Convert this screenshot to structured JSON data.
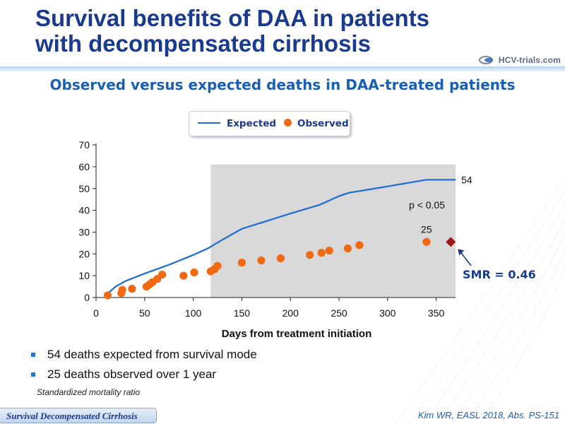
{
  "slide": {
    "title_line1": "Survival benefits of DAA in patients",
    "title_line2": "with decompensated cirrhosis",
    "subtitle": "Observed versus expected deaths in DAA-treated patients",
    "logo_text": "HCV-trials.com",
    "bullets": [
      "54 deaths expected from survival mode",
      "25 deaths observed over 1 year"
    ],
    "footnote": "Standardized mortality ratio",
    "section_tag": "Survival Decompensated Cirrhosis",
    "citation": "Kim WR, EASL 2018, Abs. PS-151",
    "colors": {
      "title": "#1a3a8c",
      "accent": "#1a5fb4",
      "expected_line": "#1f6fd6",
      "observed_dot": "#f06a14",
      "smr_marker": "#9b1616",
      "shaded": "#d9d9d9"
    }
  },
  "chart_data": {
    "type": "line",
    "xlabel": "Days from treatment initiation",
    "ylabel": "",
    "xlim": [
      0,
      370
    ],
    "ylim": [
      0,
      70
    ],
    "xticks": [
      0,
      50,
      100,
      150,
      200,
      250,
      300,
      350
    ],
    "yticks": [
      0,
      10,
      20,
      30,
      40,
      50,
      60,
      70
    ],
    "shaded_region": {
      "x": [
        118,
        370
      ],
      "y": [
        0,
        61
      ]
    },
    "legend": {
      "position": "top-center",
      "entries": [
        "Expected",
        "Observed"
      ]
    },
    "series": [
      {
        "name": "Expected",
        "kind": "line",
        "points": [
          [
            10,
            1
          ],
          [
            20,
            5
          ],
          [
            30,
            7.5
          ],
          [
            50,
            11
          ],
          [
            75,
            15
          ],
          [
            100,
            19.5
          ],
          [
            115,
            22.5
          ],
          [
            130,
            26.5
          ],
          [
            150,
            31.5
          ],
          [
            175,
            35
          ],
          [
            200,
            38.5
          ],
          [
            230,
            42.5
          ],
          [
            250,
            46.5
          ],
          [
            260,
            48
          ],
          [
            300,
            51
          ],
          [
            340,
            54
          ],
          [
            370,
            54
          ]
        ]
      },
      {
        "name": "Observed",
        "kind": "scatter",
        "points": [
          [
            12,
            1
          ],
          [
            26,
            2
          ],
          [
            27,
            3.5
          ],
          [
            37,
            4
          ],
          [
            52,
            5
          ],
          [
            55,
            6
          ],
          [
            58,
            7
          ],
          [
            63,
            8.5
          ],
          [
            68,
            10.5
          ],
          [
            90,
            10
          ],
          [
            101,
            11.5
          ],
          [
            118,
            12
          ],
          [
            122,
            13
          ],
          [
            125,
            14.5
          ],
          [
            150,
            16
          ],
          [
            170,
            17
          ],
          [
            190,
            18
          ],
          [
            220,
            19.5
          ],
          [
            232,
            20.5
          ],
          [
            240,
            21.5
          ],
          [
            259,
            22.5
          ],
          [
            271,
            24
          ],
          [
            340,
            25.5
          ]
        ]
      },
      {
        "name": "SMR",
        "kind": "marker",
        "points": [
          [
            365,
            25.5
          ]
        ]
      }
    ],
    "annotations": {
      "expected_end_label": "54",
      "observed_end_label": "25",
      "p_value": "p < 0.05",
      "smr": "SMR = 0.46"
    }
  }
}
